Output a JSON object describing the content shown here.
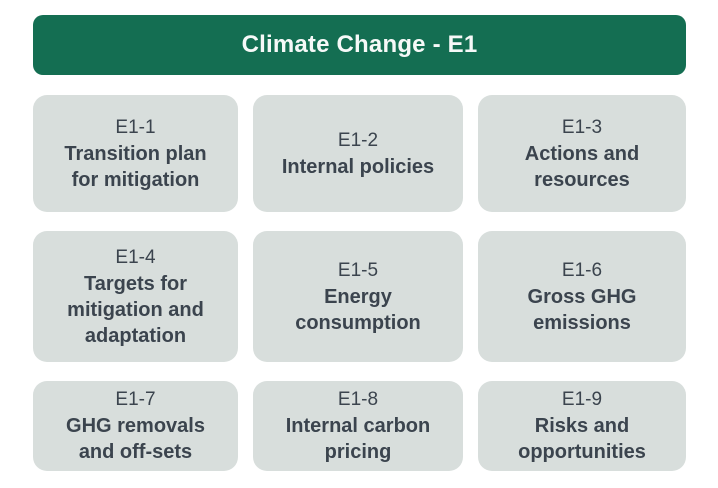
{
  "header": {
    "title": "Climate Change - E1",
    "bg_color": "#146e52",
    "text_color": "#f6f9f8"
  },
  "colors": {
    "card_bg": "#d8dedc",
    "card_text": "#3b444e",
    "page_bg": "#ffffff"
  },
  "cards": [
    {
      "id": "E1-1",
      "title": "Transition plan\nfor mitigation"
    },
    {
      "id": "E1-2",
      "title": "Internal policies"
    },
    {
      "id": "E1-3",
      "title": "Actions and\nresources"
    },
    {
      "id": "E1-4",
      "title": "Targets for\nmitigation and\nadaptation"
    },
    {
      "id": "E1-5",
      "title": "Energy\nconsumption"
    },
    {
      "id": "E1-6",
      "title": "Gross GHG\nemissions"
    },
    {
      "id": "E1-7",
      "title": "GHG removals\nand off-sets"
    },
    {
      "id": "E1-8",
      "title": "Internal carbon\npricing"
    },
    {
      "id": "E1-9",
      "title": "Risks and\nopportunities"
    }
  ]
}
